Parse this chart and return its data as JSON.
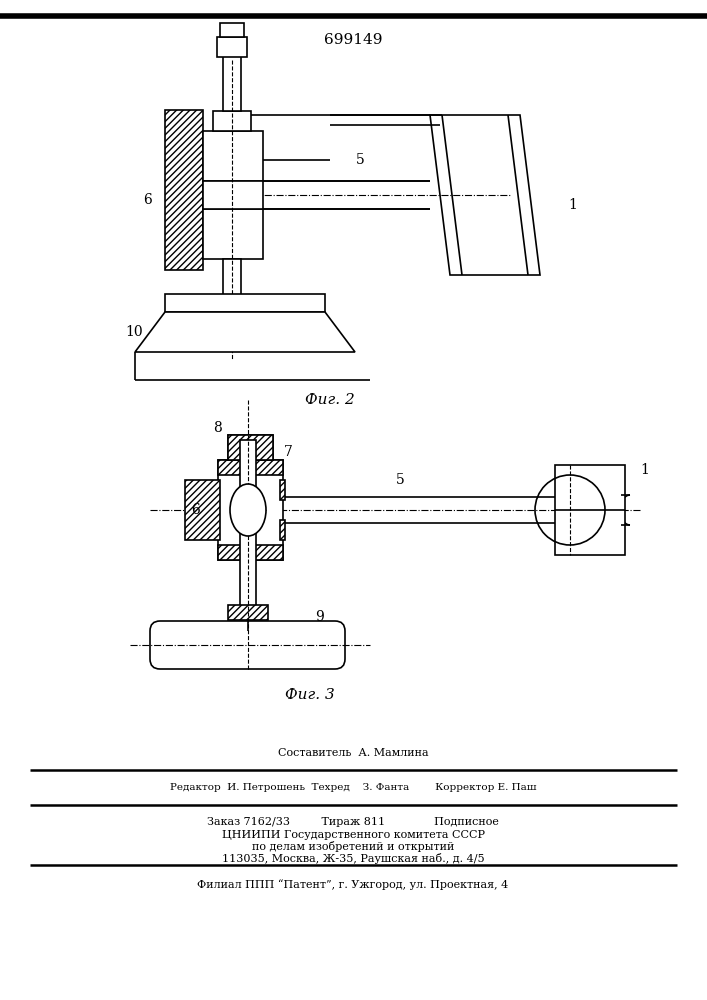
{
  "title": "699149",
  "fig2_label": "Фиг. 2",
  "fig3_label": "Фиг. 3",
  "bg_color": "#ffffff",
  "line_color": "#000000",
  "footer_line1": "Составитель  А. Мамлина",
  "footer_line2": "Редактор  И. Петрошень  Техред    З. Фанта        Корректор Е. Паш",
  "footer_line3": "Заказ 7162/33         Тираж 811              Подписное",
  "footer_line4": "ЦНИИПИ Государственного комитета СССР",
  "footer_line5": "по делам изобретений и открытий",
  "footer_line6": "113035, Москва, Ж-35, Раушская наб., д. 4/5",
  "footer_line7": "Филиал ППП “Патент”, г. Ужгород, ул. Проектная, 4"
}
